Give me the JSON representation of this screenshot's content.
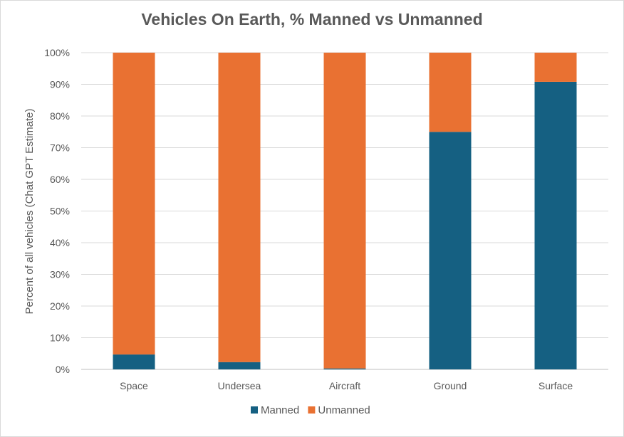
{
  "chart_data": {
    "type": "bar",
    "stacked": true,
    "title": "Vehicles On Earth, % Manned vs Unmanned",
    "xlabel": "",
    "ylabel": "Percent of all vehicles (Chat GPT Estimate)",
    "categories": [
      "Space",
      "Undersea",
      "Aircraft",
      "Ground",
      "Surface"
    ],
    "series": [
      {
        "name": "Manned",
        "color": "#156082",
        "values": [
          4.7,
          2.3,
          0.3,
          75.0,
          90.8
        ]
      },
      {
        "name": "Unmanned",
        "color": "#E97132",
        "values": [
          95.3,
          97.7,
          99.7,
          25.0,
          9.2
        ]
      }
    ],
    "ylim": [
      0,
      100
    ],
    "yticks": [
      "0%",
      "10%",
      "20%",
      "30%",
      "40%",
      "50%",
      "60%",
      "70%",
      "80%",
      "90%",
      "100%"
    ],
    "grid": true,
    "legend": "bottom"
  }
}
